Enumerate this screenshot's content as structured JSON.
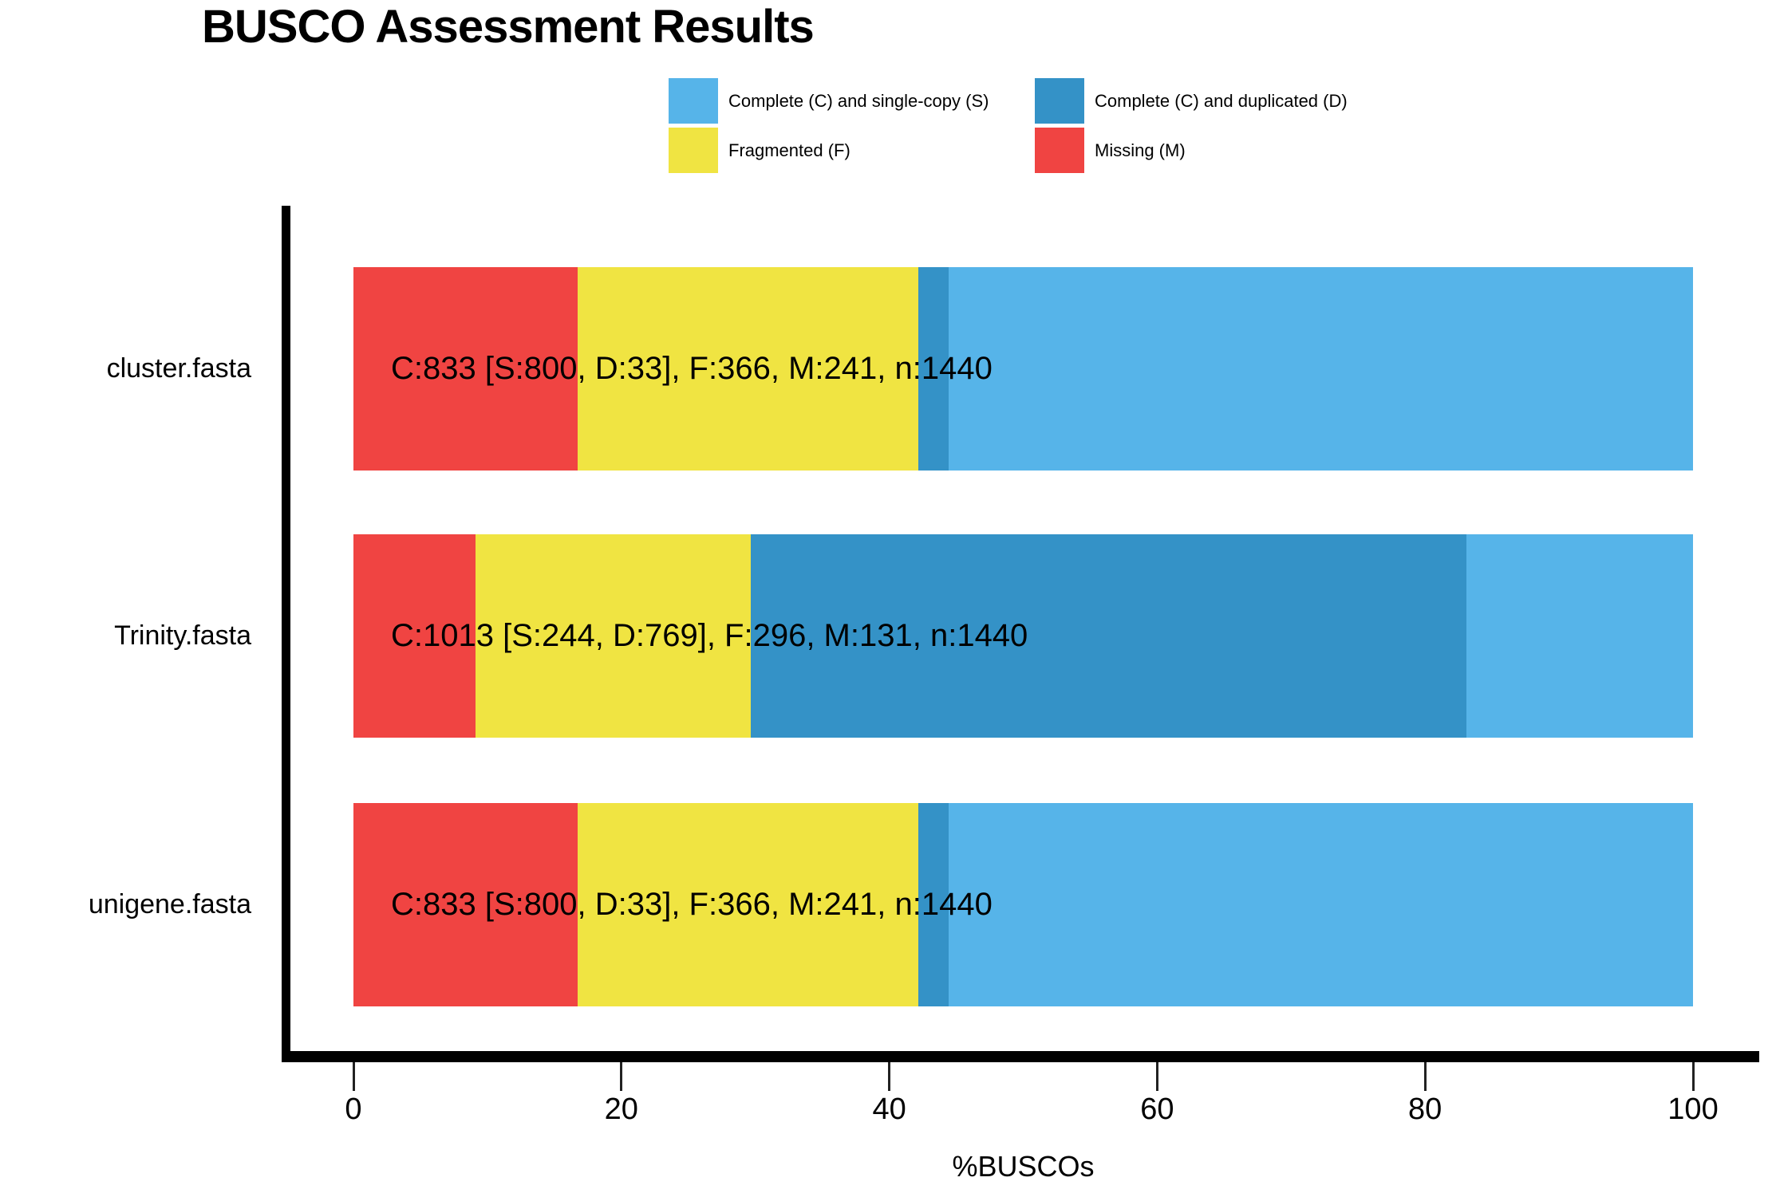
{
  "title": "BUSCO Assessment Results",
  "xlabel": "%BUSCOs",
  "legend": {
    "items": [
      {
        "name": "single_copy",
        "label": "Complete (C) and single-copy (S)",
        "color": "#56B4E9"
      },
      {
        "name": "duplicated",
        "label": "Complete (C) and duplicated (D)",
        "color": "#3492C7"
      },
      {
        "name": "fragmented",
        "label": "Fragmented (F)",
        "color": "#F0E442"
      },
      {
        "name": "missing",
        "label": "Missing (M)",
        "color": "#F04442"
      }
    ]
  },
  "chart_data": {
    "type": "bar",
    "orientation": "horizontal",
    "stacked": true,
    "title": "BUSCO Assessment Results",
    "xlabel": "%BUSCOs",
    "xlim": [
      0,
      100
    ],
    "x_ticks": [
      0,
      20,
      40,
      60,
      80,
      100
    ],
    "grid": false,
    "legend_position": "top",
    "n_total": 1440,
    "categories": [
      "cluster.fasta",
      "Trinity.fasta",
      "unigene.fasta"
    ],
    "segment_order": [
      "missing",
      "fragmented",
      "duplicated",
      "single_copy"
    ],
    "colors": {
      "single_copy": "#56B4E9",
      "duplicated": "#3492C7",
      "fragmented": "#F0E442",
      "missing": "#F04442"
    },
    "bars": [
      {
        "category": "cluster.fasta",
        "label": "C:833 [S:800, D:33], F:366, M:241, n:1440",
        "counts": {
          "complete": 833,
          "single_copy": 800,
          "duplicated": 33,
          "fragmented": 366,
          "missing": 241,
          "n": 1440
        },
        "segments": [
          {
            "name": "missing",
            "pct": 16.74
          },
          {
            "name": "fragmented",
            "pct": 25.42
          },
          {
            "name": "duplicated",
            "pct": 2.29
          },
          {
            "name": "single_copy",
            "pct": 55.55
          }
        ]
      },
      {
        "category": "Trinity.fasta",
        "label": "C:1013 [S:244, D:769], F:296, M:131, n:1440",
        "counts": {
          "complete": 1013,
          "single_copy": 244,
          "duplicated": 769,
          "fragmented": 296,
          "missing": 131,
          "n": 1440
        },
        "segments": [
          {
            "name": "missing",
            "pct": 9.1
          },
          {
            "name": "fragmented",
            "pct": 20.56
          },
          {
            "name": "duplicated",
            "pct": 53.4
          },
          {
            "name": "single_copy",
            "pct": 16.94
          }
        ]
      },
      {
        "category": "unigene.fasta",
        "label": "C:833 [S:800, D:33], F:366, M:241, n:1440",
        "counts": {
          "complete": 833,
          "single_copy": 800,
          "duplicated": 33,
          "fragmented": 366,
          "missing": 241,
          "n": 1440
        },
        "segments": [
          {
            "name": "missing",
            "pct": 16.74
          },
          {
            "name": "fragmented",
            "pct": 25.42
          },
          {
            "name": "duplicated",
            "pct": 2.29
          },
          {
            "name": "single_copy",
            "pct": 55.55
          }
        ]
      }
    ]
  }
}
